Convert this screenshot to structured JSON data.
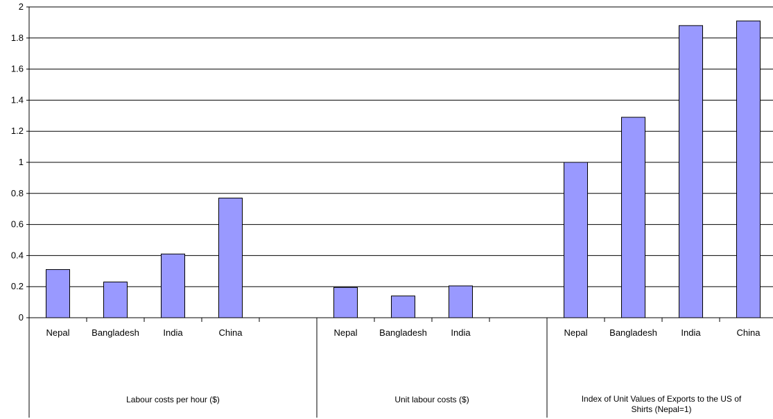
{
  "chart_data": {
    "type": "bar",
    "ylim": [
      0,
      2
    ],
    "yticks": [
      "0",
      "0.2",
      "0.4",
      "0.6",
      "0.8",
      "1",
      "1.2",
      "1.4",
      "1.6",
      "1.8",
      "2"
    ],
    "grid": true,
    "legend": "none",
    "bar_color": "#9999ff",
    "groups": [
      {
        "label_lines": [
          "Labour costs per hour ($)"
        ],
        "categories": [
          "Nepal",
          "Bangladesh",
          "India",
          "China",
          ""
        ],
        "values": [
          0.31,
          0.23,
          0.41,
          0.77,
          null
        ]
      },
      {
        "label_lines": [
          "Unit labour costs ($)"
        ],
        "categories": [
          "Nepal",
          "Bangladesh",
          "India",
          ""
        ],
        "values": [
          0.195,
          0.14,
          0.205,
          null
        ]
      },
      {
        "label_lines": [
          "Index of Unit Values of Exports to the US of",
          "Shirts (Nepal=1)"
        ],
        "categories": [
          "Nepal",
          "Bangladesh",
          "India",
          "China"
        ],
        "values": [
          1.0,
          1.29,
          1.88,
          1.91
        ]
      }
    ]
  }
}
